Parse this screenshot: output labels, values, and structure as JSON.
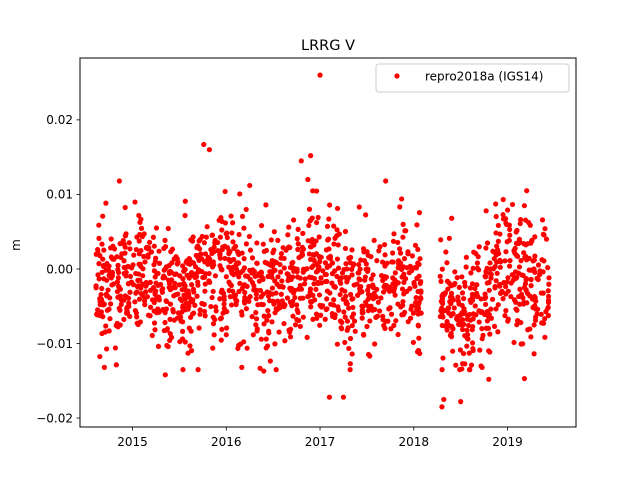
{
  "chart_data": {
    "type": "scatter",
    "title": "LRRG V",
    "xlabel": "",
    "ylabel": "m",
    "xlim": [
      2014.44,
      2019.73
    ],
    "ylim": [
      -0.0212,
      0.0283
    ],
    "grid": false,
    "legend_position": "top-right",
    "x_ticks": [
      2015,
      2016,
      2017,
      2018,
      2019
    ],
    "x_tick_labels": [
      "2015",
      "2016",
      "2017",
      "2018",
      "2019"
    ],
    "y_ticks": [
      -0.02,
      -0.01,
      0.0,
      0.01,
      0.02
    ],
    "y_tick_labels": [
      "−0.02",
      "−0.01",
      "0.00",
      "0.01",
      "0.02"
    ],
    "series": [
      {
        "name": "repro2018a (IGS14)",
        "color": "#ff0000",
        "marker": "circle",
        "segments": [
          {
            "x_start": 2014.61,
            "x_end": 2018.08
          },
          {
            "x_start": 2018.28,
            "x_end": 2019.45
          }
        ],
        "trend": [
          [
            2014.6,
            -0.002
          ],
          [
            2014.9,
            -0.0015
          ],
          [
            2015.2,
            -0.002
          ],
          [
            2015.5,
            -0.003
          ],
          [
            2015.8,
            0.0005
          ],
          [
            2016.1,
            -0.001
          ],
          [
            2016.4,
            -0.003
          ],
          [
            2016.7,
            -0.002
          ],
          [
            2017.0,
            0.0
          ],
          [
            2017.3,
            -0.004
          ],
          [
            2017.6,
            -0.003
          ],
          [
            2017.9,
            0.0005
          ],
          [
            2018.08,
            -0.002
          ],
          [
            2018.3,
            -0.004
          ],
          [
            2018.6,
            -0.007
          ],
          [
            2018.9,
            0.0
          ],
          [
            2019.1,
            0.0
          ],
          [
            2019.45,
            -0.004
          ]
        ],
        "spread_sd": 0.0042,
        "approx_point_count": 1500,
        "notable_points": [
          {
            "x": 2017.0,
            "y": 0.026
          },
          {
            "x": 2015.76,
            "y": 0.0167
          },
          {
            "x": 2015.82,
            "y": 0.016
          },
          {
            "x": 2016.8,
            "y": 0.0145
          },
          {
            "x": 2016.9,
            "y": 0.0152
          },
          {
            "x": 2016.87,
            "y": 0.012
          },
          {
            "x": 2014.86,
            "y": 0.0118
          },
          {
            "x": 2017.7,
            "y": 0.0118
          },
          {
            "x": 2016.25,
            "y": 0.0112
          },
          {
            "x": 2019.0,
            "y": 0.0079
          },
          {
            "x": 2018.3,
            "y": -0.0185
          },
          {
            "x": 2018.32,
            "y": -0.0175
          },
          {
            "x": 2018.5,
            "y": -0.0178
          },
          {
            "x": 2017.1,
            "y": -0.0172
          },
          {
            "x": 2017.25,
            "y": -0.0172
          },
          {
            "x": 2018.8,
            "y": -0.0148
          },
          {
            "x": 2019.18,
            "y": -0.0147
          },
          {
            "x": 2015.35,
            "y": -0.0142
          },
          {
            "x": 2016.4,
            "y": -0.0137
          },
          {
            "x": 2014.7,
            "y": -0.0132
          }
        ]
      }
    ]
  }
}
